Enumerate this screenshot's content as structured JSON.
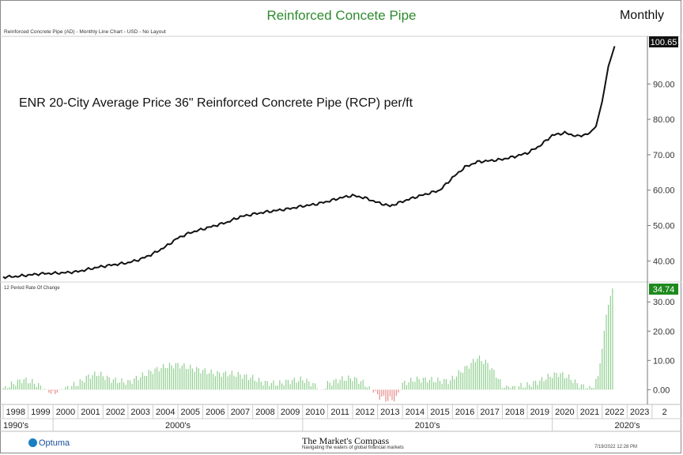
{
  "header": {
    "title": "Reinforced Concete Pipe",
    "period": "Monthly",
    "subtitle": "Reinforced Concrete Pipe (AD) - Monthly Line Chart - USD - No Layout",
    "annotation": "ENR 20-City Average Price 36\" Reinforced Concrete Pipe (RCP) per/ft"
  },
  "roc_panel_label": "12 Period Rate Of Change",
  "colors": {
    "title": "#2e8b2e",
    "line": "#111111",
    "up_bar": "#8fce8f",
    "down_bar": "#e88a8a",
    "roc_tag": "#1e8a1e",
    "price_tag": "#111111"
  },
  "chart_data": [
    {
      "type": "line",
      "title": "Reinforced Concete Pipe",
      "x_range": [
        1998.0,
        2023.75
      ],
      "ylim": [
        34.5,
        103
      ],
      "y_ticks": [
        "40.00",
        "50.00",
        "60.00",
        "70.00",
        "80.00",
        "90.00"
      ],
      "last_value_label": "100.65",
      "x": [
        1998.0,
        1998.5,
        1999.0,
        1999.5,
        2000.0,
        2000.5,
        2001.0,
        2001.5,
        2002.0,
        2002.5,
        2003.0,
        2003.5,
        2004.0,
        2004.5,
        2005.0,
        2005.5,
        2006.0,
        2006.5,
        2007.0,
        2007.5,
        2008.0,
        2008.5,
        2009.0,
        2009.5,
        2010.0,
        2010.5,
        2011.0,
        2011.5,
        2012.0,
        2012.5,
        2013.0,
        2013.5,
        2014.0,
        2014.5,
        2015.0,
        2015.5,
        2016.0,
        2016.5,
        2017.0,
        2017.5,
        2018.0,
        2018.5,
        2019.0,
        2019.5,
        2020.0,
        2020.5,
        2021.0,
        2021.5,
        2021.75,
        2022.0,
        2022.25,
        2022.5
      ],
      "y": [
        35.5,
        35.6,
        36.0,
        36.4,
        36.5,
        36.7,
        37.0,
        37.8,
        38.5,
        39.0,
        39.5,
        40.5,
        42.0,
        44.0,
        46.5,
        48.0,
        49.0,
        50.0,
        51.0,
        52.5,
        53.2,
        53.8,
        54.3,
        54.8,
        55.5,
        56.0,
        56.8,
        57.8,
        58.5,
        57.8,
        56.5,
        55.5,
        56.8,
        58.0,
        59.0,
        60.0,
        63.5,
        66.5,
        68.0,
        68.3,
        68.7,
        69.5,
        70.5,
        72.5,
        75.5,
        76.2,
        75.2,
        76.0,
        78.0,
        85.0,
        95.0,
        100.65
      ],
      "x_tick_labels": [
        "1998",
        "1999",
        "2000",
        "2001",
        "2002",
        "2003",
        "2004",
        "2005",
        "2006",
        "2007",
        "2008",
        "2009",
        "2010",
        "2011",
        "2012",
        "2013",
        "2014",
        "2015",
        "2016",
        "2017",
        "2018",
        "2019",
        "2020",
        "2021",
        "2022",
        "2023",
        "2"
      ],
      "decade_labels": [
        "1990's",
        "2000's",
        "2010's",
        "2020's"
      ]
    },
    {
      "type": "bar",
      "title": "12 Period Rate Of Change",
      "ylim": [
        -4.5,
        36
      ],
      "y_ticks": [
        "0.00",
        "10.00",
        "20.00",
        "30.00"
      ],
      "last_value_label": "34.74",
      "anchors": {
        "x": [
          1998.0,
          1998.8,
          1999.2,
          1999.6,
          2000.0,
          2000.4,
          2001.0,
          2001.4,
          2001.8,
          2002.3,
          2002.6,
          2003.0,
          2003.5,
          2004.0,
          2004.5,
          2005.0,
          2005.5,
          2006.0,
          2006.5,
          2007.0,
          2007.5,
          2008.0,
          2008.4,
          2009.0,
          2009.5,
          2010.0,
          2010.4,
          2010.75,
          2011.0,
          2011.5,
          2012.0,
          2012.4,
          2012.7,
          2013.0,
          2013.4,
          2013.75,
          2014.0,
          2014.5,
          2015.0,
          2015.5,
          2015.9,
          2016.3,
          2016.7,
          2017.0,
          2017.4,
          2017.8,
          2018.0,
          2018.5,
          2019.0,
          2019.5,
          2020.0,
          2020.3,
          2020.7,
          2021.0,
          2021.4,
          2021.7,
          2021.85,
          2022.0,
          2022.15,
          2022.3,
          2022.42
        ],
        "v": [
          0.5,
          3.5,
          2.5,
          0.5,
          -1.5,
          0.5,
          2.0,
          4.5,
          5.5,
          3.5,
          3.0,
          2.5,
          4.5,
          6.5,
          8.0,
          8.5,
          7.5,
          6.5,
          5.5,
          5.5,
          5.0,
          4.0,
          2.5,
          2.0,
          3.0,
          3.5,
          2.0,
          -0.5,
          2.0,
          3.5,
          4.0,
          2.5,
          0.5,
          -2.0,
          -3.5,
          -3.0,
          2.0,
          3.5,
          3.5,
          3.0,
          3.0,
          6.0,
          8.5,
          11.0,
          9.0,
          4.5,
          1.0,
          1.0,
          1.5,
          3.0,
          5.0,
          5.5,
          4.0,
          2.0,
          0.5,
          1.5,
          5.0,
          14.0,
          25.0,
          31.0,
          34.74
        ]
      }
    }
  ],
  "footer": {
    "brand": "Optuma",
    "center_title": "The Market's Compass",
    "tagline": "Navigating the waters of global financial markets",
    "timestamp": "7/19/2022 12:28 PM"
  }
}
